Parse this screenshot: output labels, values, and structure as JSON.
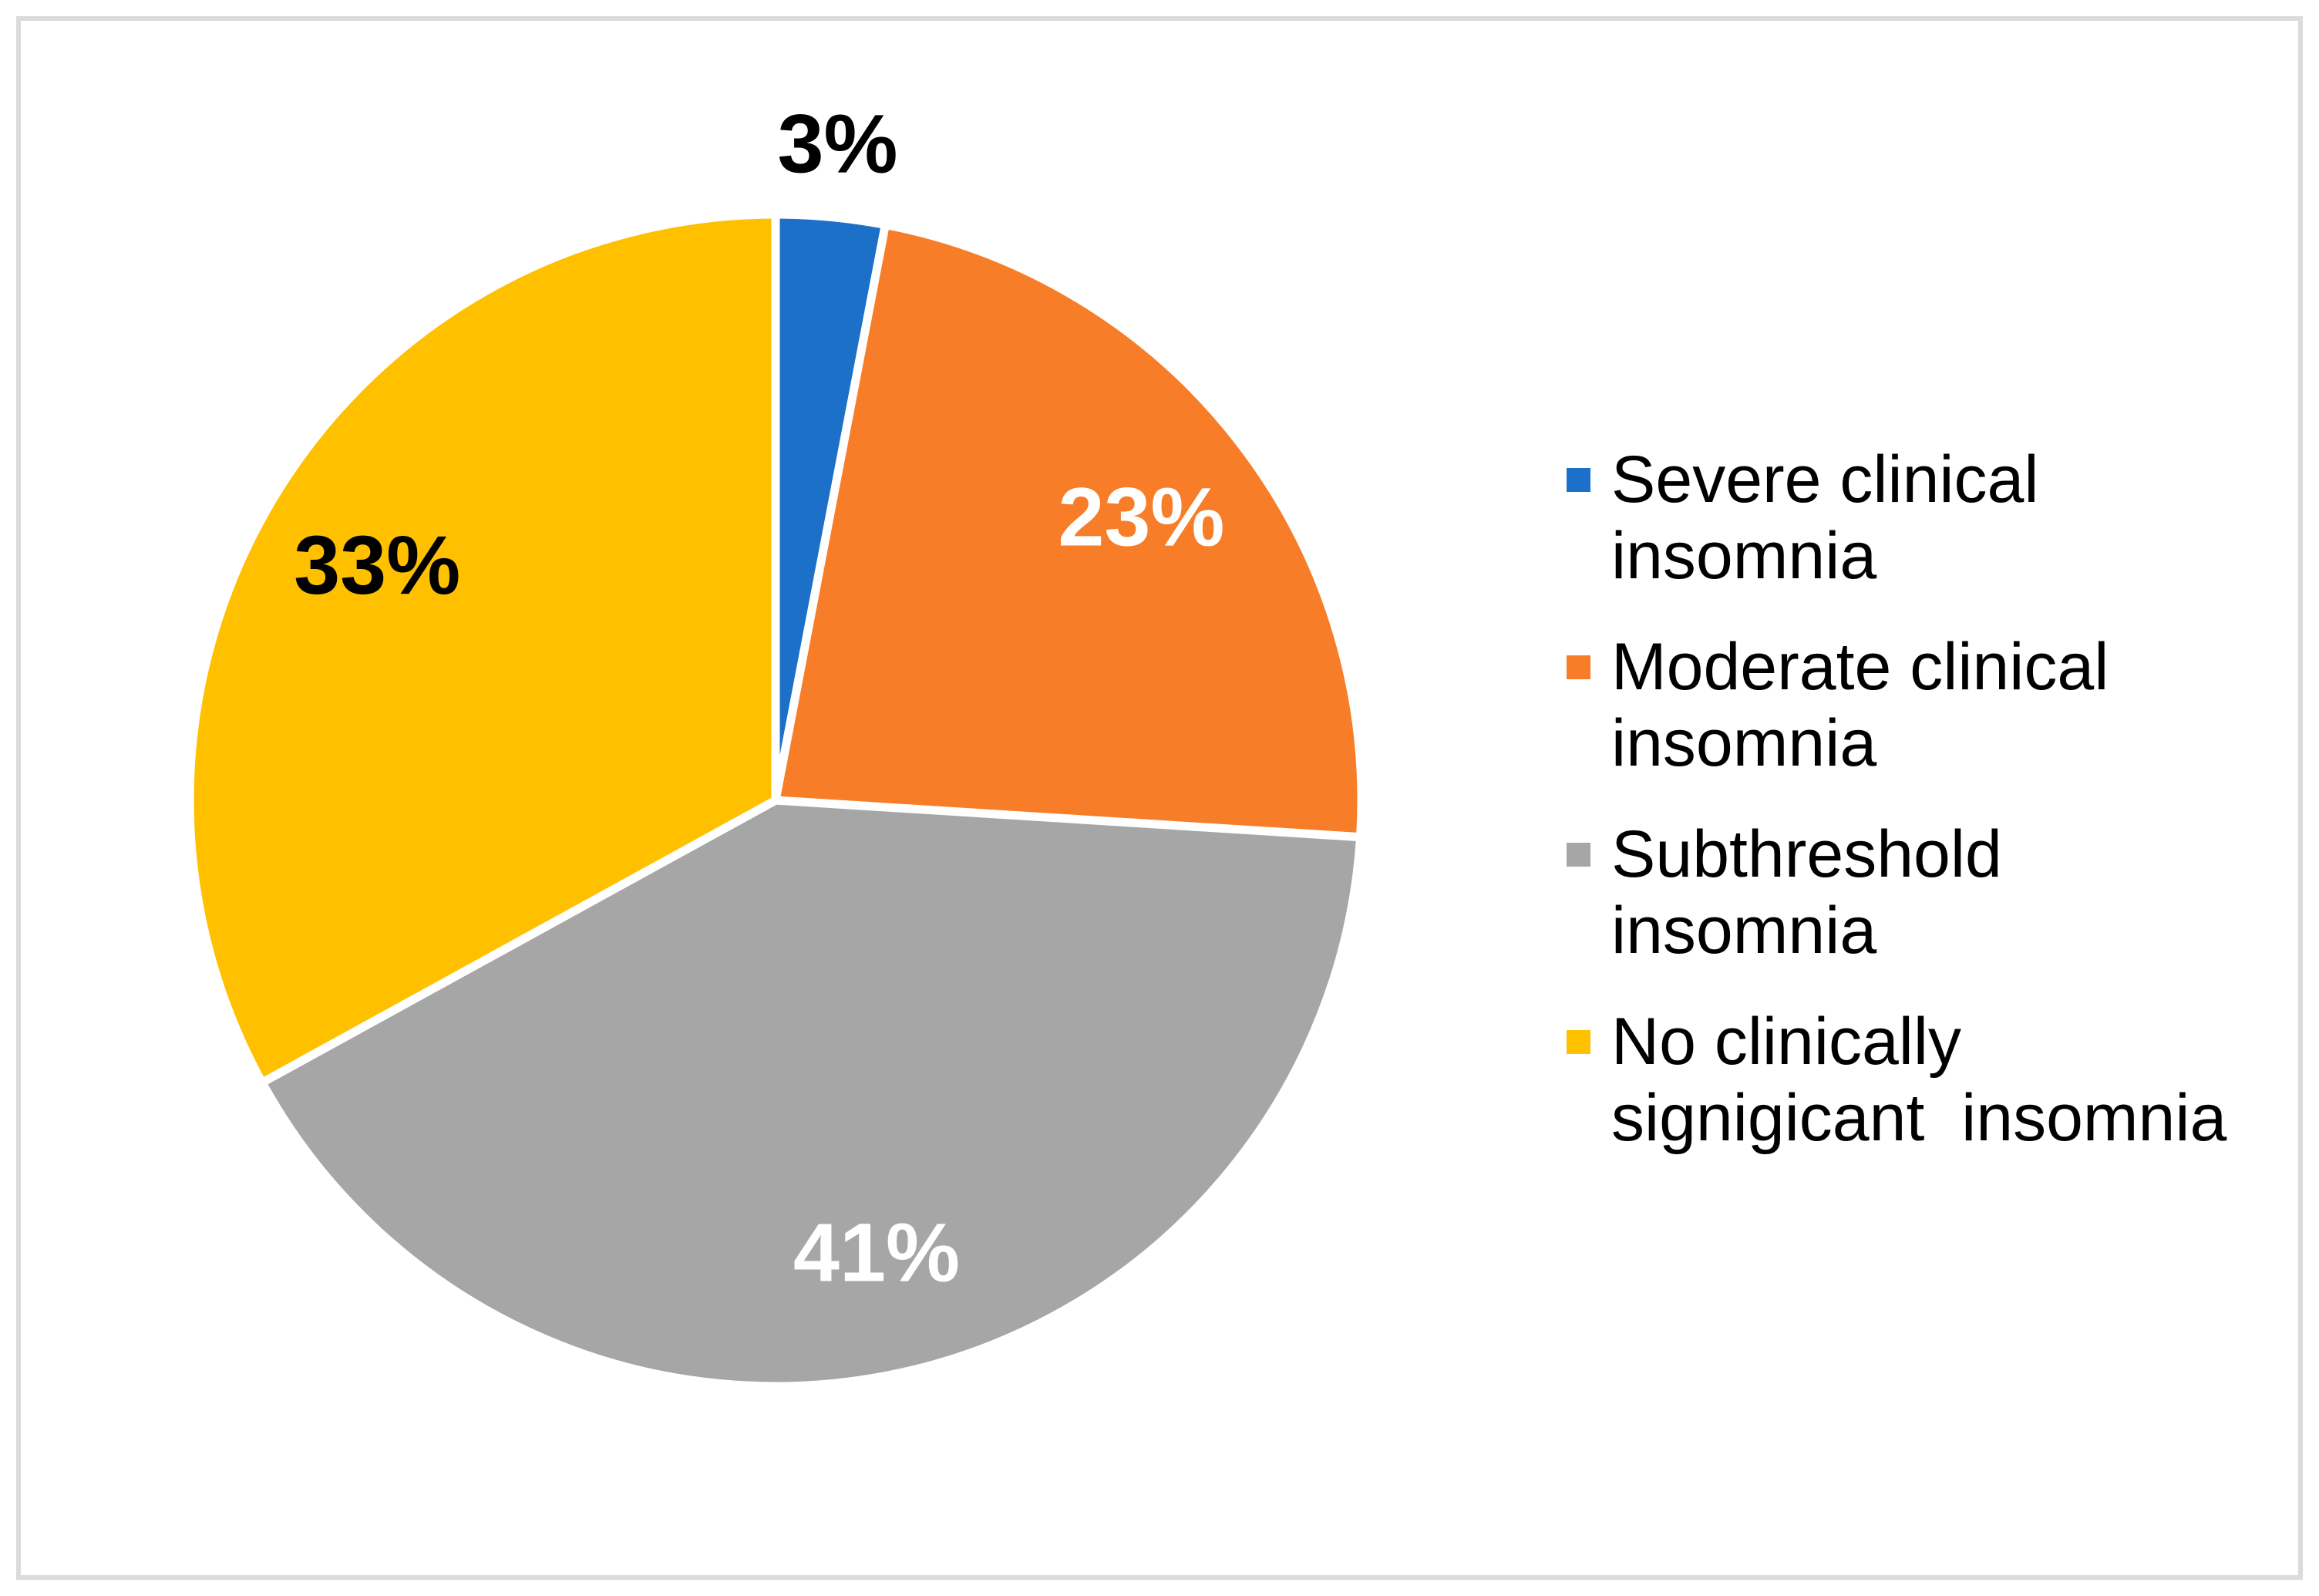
{
  "chart_data": {
    "type": "pie",
    "title": "",
    "categories": [
      "Severe clinical insomnia",
      "Moderate clinical insomnia",
      "Subthreshold insomnia",
      "No clinically signigicant  insomnia"
    ],
    "values": [
      3,
      23,
      41,
      33
    ],
    "slice_labels": [
      "3%",
      "23%",
      "41%",
      "33%"
    ],
    "colors": [
      "#1C70C8",
      "#F77D28",
      "#A6A6A6",
      "#FFC000"
    ],
    "label_colors": [
      "#000000",
      "#FFFFFF",
      "#FFFFFF",
      "#000000"
    ],
    "label_placement": [
      "outside",
      "inside",
      "inside",
      "inside"
    ],
    "start_angle_deg": 0,
    "direction": "clockwise",
    "separator_color": "#FFFFFF",
    "legend_position": "right"
  },
  "legend": {
    "items": [
      {
        "lines": [
          "Severe clinical",
          "insomnia"
        ],
        "color": "#1C70C8"
      },
      {
        "lines": [
          "Moderate clinical",
          "insomnia"
        ],
        "color": "#F77D28"
      },
      {
        "lines": [
          "Subthreshold",
          "insomnia"
        ],
        "color": "#A6A6A6"
      },
      {
        "lines": [
          "No clinically",
          "signigicant  insomnia"
        ],
        "color": "#FFC000"
      }
    ]
  }
}
